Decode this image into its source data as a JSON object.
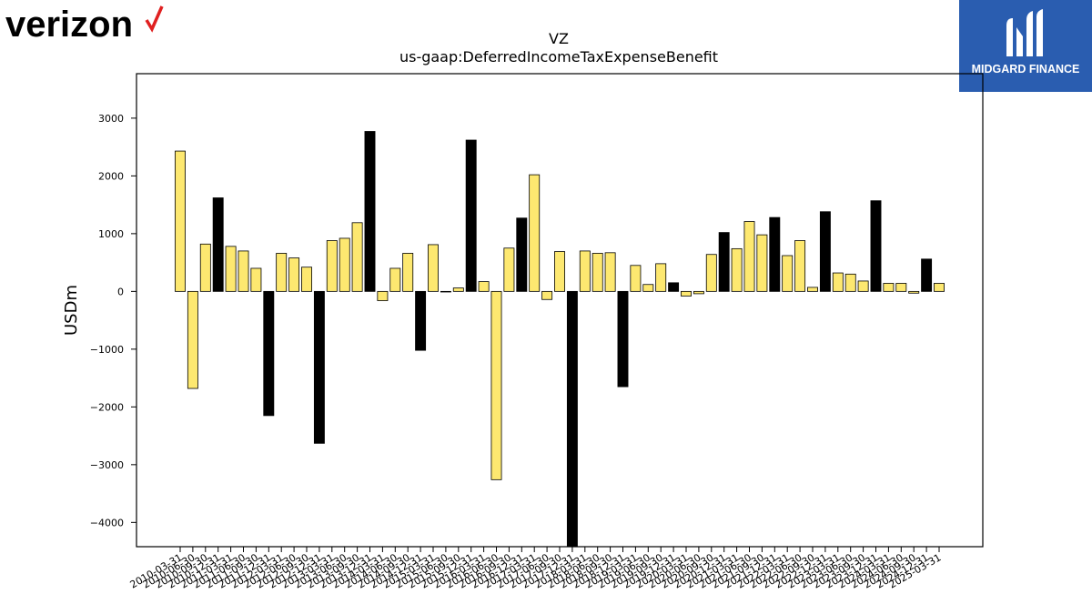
{
  "logos": {
    "left_text": "verizon",
    "right_text": "MIDGARD FINANCE",
    "right_bg": "#2a5db0",
    "left_check_color": "#e02020"
  },
  "chart_data": {
    "type": "bar",
    "title": "VZ",
    "subtitle": "us-gaap:DeferredIncomeTaxExpenseBenefit",
    "xlabel": "",
    "ylabel": "USDm",
    "ylim": [
      -4420,
      3770
    ],
    "yticks": [
      -4000,
      -3000,
      -2000,
      -1000,
      0,
      1000,
      2000,
      3000
    ],
    "grid": false,
    "colors": {
      "quarter": "#fde870",
      "annual": "#000000",
      "edge": "#000000"
    },
    "categories": [
      "2010-03-31",
      "2010-06-30",
      "2010-09-30",
      "2010-12-31",
      "2011-03-31",
      "2011-06-30",
      "2011-09-30",
      "2011-12-31",
      "2012-03-31",
      "2012-06-30",
      "2012-09-30",
      "2012-12-31",
      "2013-03-31",
      "2013-06-30",
      "2013-09-30",
      "2013-12-31",
      "2014-03-31",
      "2014-06-30",
      "2014-09-30",
      "2014-12-31",
      "2015-03-31",
      "2015-06-30",
      "2015-09-30",
      "2015-12-31",
      "2016-03-31",
      "2016-06-30",
      "2016-09-30",
      "2016-12-31",
      "2017-03-31",
      "2017-06-30",
      "2017-09-30",
      "2017-12-31",
      "2018-03-31",
      "2018-06-30",
      "2018-09-30",
      "2018-12-31",
      "2019-03-31",
      "2019-06-30",
      "2019-09-30",
      "2019-12-31",
      "2020-03-31",
      "2020-06-30",
      "2020-09-30",
      "2020-12-31",
      "2021-03-31",
      "2021-06-30",
      "2021-09-30",
      "2021-12-31",
      "2022-03-31",
      "2022-06-30",
      "2022-09-30",
      "2022-12-31",
      "2023-03-31",
      "2023-06-30",
      "2023-09-30",
      "2023-12-31",
      "2024-03-31",
      "2024-06-30",
      "2024-09-30",
      "2024-12-31",
      "2025-03-31"
    ],
    "values": [
      2430,
      -1680,
      820,
      1620,
      780,
      700,
      400,
      -2150,
      660,
      580,
      420,
      -2630,
      880,
      920,
      1190,
      2770,
      -160,
      400,
      660,
      -1020,
      810,
      -10,
      60,
      2620,
      170,
      -3260,
      750,
      1270,
      2020,
      -140,
      690,
      -4420,
      700,
      660,
      670,
      -1650,
      450,
      120,
      480,
      150,
      -80,
      -40,
      640,
      1020,
      740,
      1210,
      980,
      1280,
      620,
      880,
      70,
      1380,
      320,
      300,
      180,
      1570,
      140,
      140,
      -30,
      560,
      140
    ],
    "annual_flags": [
      false,
      false,
      false,
      true,
      false,
      false,
      false,
      true,
      false,
      false,
      false,
      true,
      false,
      false,
      false,
      true,
      false,
      false,
      false,
      true,
      false,
      false,
      false,
      true,
      false,
      false,
      false,
      true,
      false,
      false,
      false,
      true,
      false,
      false,
      false,
      true,
      false,
      false,
      false,
      true,
      false,
      false,
      false,
      true,
      false,
      false,
      false,
      true,
      false,
      false,
      false,
      true,
      false,
      false,
      false,
      true,
      false,
      false,
      false,
      true,
      false
    ]
  }
}
